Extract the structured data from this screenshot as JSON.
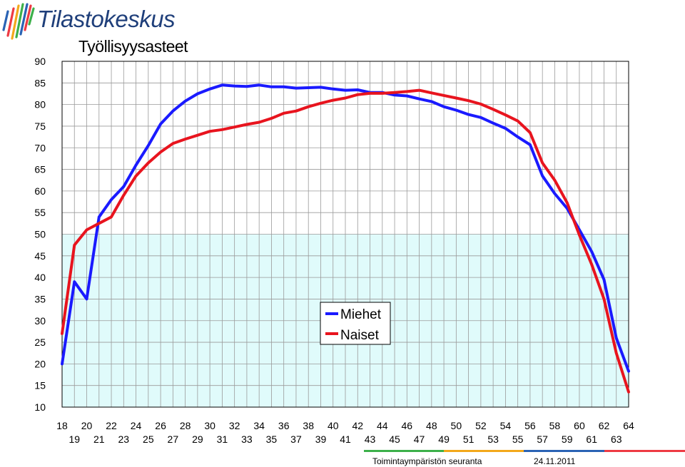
{
  "brand": {
    "name": "Tilastokeskus",
    "logo_icon": "tilastokeskus-logo-icon"
  },
  "footer": {
    "left": "Toimintaympäristön seuranta",
    "right": "24.11.2011"
  },
  "chart_data": {
    "type": "line",
    "title": "Työllisyysasteet",
    "xlabel": "",
    "ylabel": "",
    "xlim": [
      18,
      64
    ],
    "ylim": [
      10,
      90
    ],
    "yticks": [
      10,
      15,
      20,
      25,
      30,
      35,
      40,
      45,
      50,
      55,
      60,
      65,
      70,
      75,
      80,
      85,
      90
    ],
    "xticks_top": [
      18,
      20,
      22,
      24,
      26,
      28,
      30,
      32,
      34,
      36,
      38,
      40,
      42,
      44,
      46,
      48,
      50,
      52,
      54,
      56,
      58,
      60,
      62,
      64
    ],
    "xticks_bottom": [
      19,
      21,
      23,
      25,
      27,
      29,
      31,
      33,
      35,
      37,
      39,
      41,
      43,
      45,
      47,
      49,
      51,
      53,
      55,
      57,
      59,
      61,
      63
    ],
    "grid": true,
    "shaded_band": {
      "from": 10,
      "to": 50,
      "color": "#e0fbfb"
    },
    "legend": "center",
    "x": [
      18,
      19,
      20,
      21,
      22,
      23,
      24,
      25,
      26,
      27,
      28,
      29,
      30,
      31,
      32,
      33,
      34,
      35,
      36,
      37,
      38,
      39,
      40,
      41,
      42,
      43,
      44,
      45,
      46,
      47,
      48,
      49,
      50,
      51,
      52,
      53,
      54,
      55,
      56,
      57,
      58,
      59,
      60,
      61,
      62,
      63,
      64
    ],
    "series": [
      {
        "name": "Miehet",
        "color": "#1a1aff",
        "values": [
          20,
          39,
          35,
          54,
          58,
          61,
          66,
          70.5,
          75.5,
          78.5,
          80.8,
          82.5,
          83.6,
          84.5,
          84.3,
          84.2,
          84.5,
          84.1,
          84.1,
          83.8,
          83.9,
          84,
          83.6,
          83.3,
          83.4,
          82.8,
          82.8,
          82.2,
          82,
          81.3,
          80.7,
          79.5,
          78.7,
          77.7,
          77,
          75.7,
          74.5,
          72.5,
          70.7,
          63.5,
          59.4,
          56,
          51,
          46,
          39.5,
          26,
          18.3
        ]
      },
      {
        "name": "Naiset",
        "color": "#e8141e",
        "values": [
          27,
          47.5,
          51,
          52.5,
          54,
          59,
          63.5,
          66.5,
          69,
          71,
          72,
          72.9,
          73.8,
          74.2,
          74.8,
          75.4,
          75.9,
          76.8,
          78,
          78.5,
          79.5,
          80.3,
          81,
          81.5,
          82.3,
          82.6,
          82.6,
          82.8,
          83,
          83.3,
          82.7,
          82.1,
          81.5,
          80.9,
          80.1,
          78.9,
          77.6,
          76.2,
          73.5,
          66.5,
          62.5,
          57.3,
          49.8,
          43,
          35,
          22.5,
          13.5
        ]
      }
    ]
  }
}
